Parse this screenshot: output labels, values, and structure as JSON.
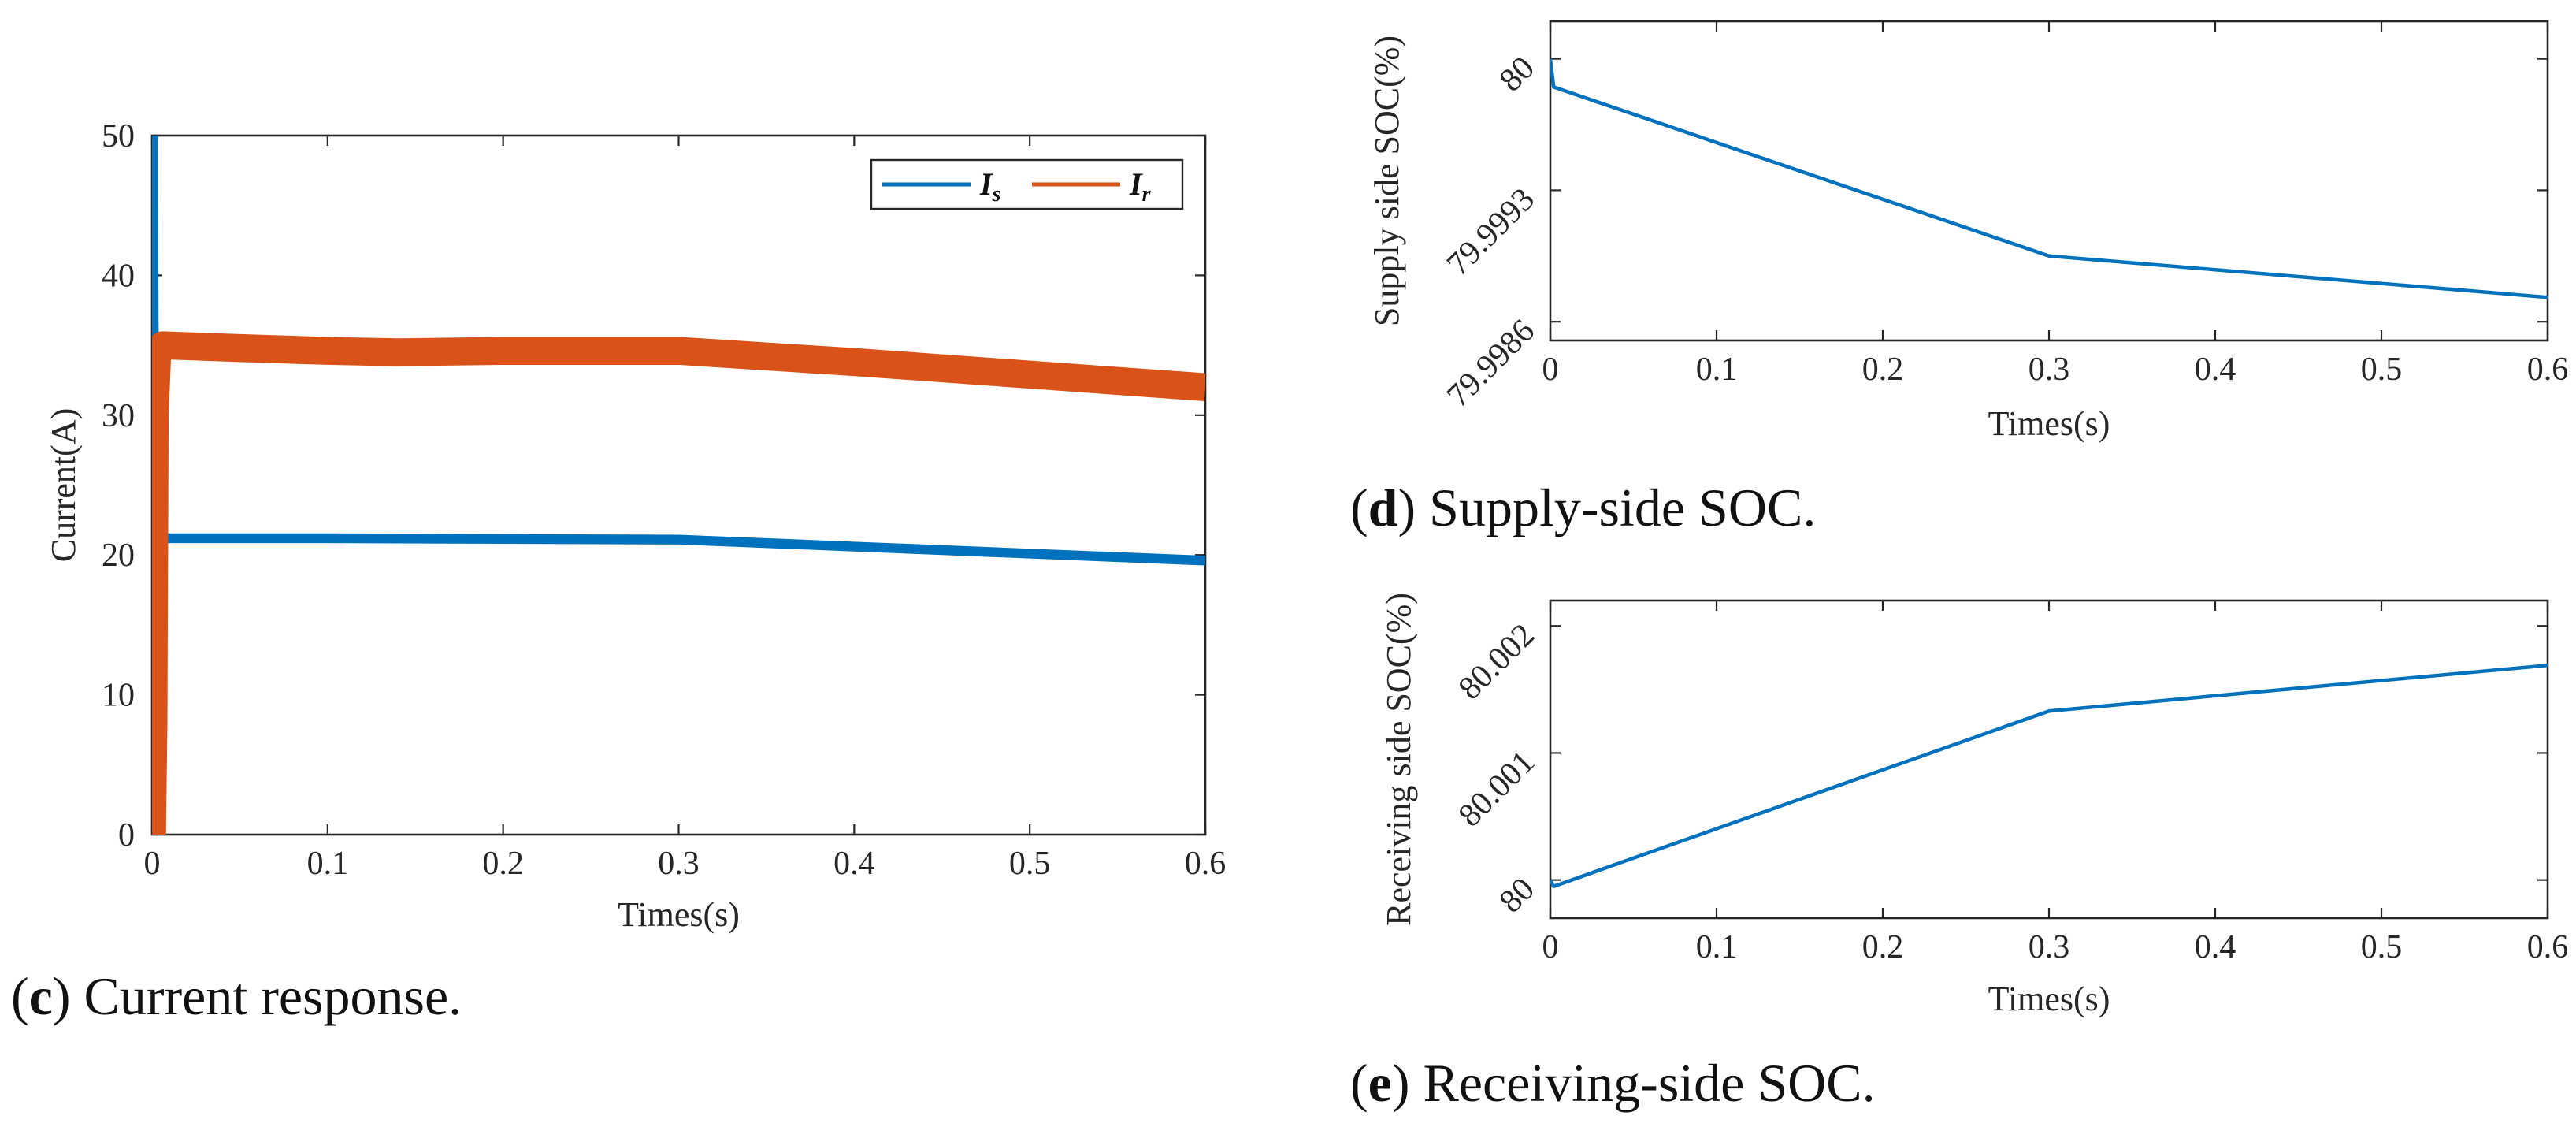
{
  "chart_data": [
    {
      "id": "c",
      "type": "line",
      "caption_letter": "c",
      "caption_text": " Current response.",
      "title": "",
      "xlabel": "Times(s)",
      "ylabel": "Current(A)",
      "xlim": [
        0,
        0.6
      ],
      "ylim": [
        0,
        50
      ],
      "xticks": [
        0,
        0.1,
        0.2,
        0.3,
        0.4,
        0.5,
        0.6
      ],
      "xtick_labels": [
        "0",
        "0.1",
        "0.2",
        "0.3",
        "0.4",
        "0.5",
        "0.6"
      ],
      "yticks": [
        0,
        10,
        20,
        30,
        40,
        50
      ],
      "ytick_labels": [
        "0",
        "10",
        "20",
        "30",
        "40",
        "50"
      ],
      "legend_position": "top-right",
      "series": [
        {
          "name": "Is",
          "legend_main": "I",
          "legend_sub": "s",
          "color": "#0072BD",
          "x": [
            0,
            0.0005,
            0.001,
            0.0015,
            0.002,
            0.003,
            0.004,
            0.006,
            0.1,
            0.2,
            0.3,
            0.4,
            0.5,
            0.6
          ],
          "y": [
            0,
            50,
            35,
            28,
            24,
            22,
            21.3,
            21.2,
            21.2,
            21.15,
            21.1,
            20.6,
            20.1,
            19.6
          ],
          "band": 0.35
        },
        {
          "name": "Ir",
          "legend_main": "I",
          "legend_sub": "r",
          "color": "#D95319",
          "x": [
            0,
            0.0008,
            0.0015,
            0.003,
            0.006,
            0.05,
            0.1,
            0.14,
            0.2,
            0.3,
            0.4,
            0.5,
            0.6
          ],
          "y": [
            0,
            8,
            30,
            34.6,
            35.0,
            34.8,
            34.6,
            34.5,
            34.6,
            34.6,
            33.8,
            32.9,
            32.0
          ],
          "band": 1.0
        }
      ]
    },
    {
      "id": "d",
      "type": "line",
      "caption_letter": "d",
      "caption_text": " Supply-side SOC.",
      "title": "",
      "xlabel": "Times(s)",
      "ylabel": "Supply side SOC(%)",
      "xlim": [
        0,
        0.6
      ],
      "ylim": [
        79.9985,
        80.0002
      ],
      "xticks": [
        0,
        0.1,
        0.2,
        0.3,
        0.4,
        0.5,
        0.6
      ],
      "xtick_labels": [
        "0",
        "0.1",
        "0.2",
        "0.3",
        "0.4",
        "0.5",
        "0.6"
      ],
      "yticks": [
        79.9986,
        79.9993,
        80.0
      ],
      "ytick_labels": [
        "79.9986",
        "79.9993",
        "80"
      ],
      "series": [
        {
          "name": "Supply side SOC",
          "color": "#0072BD",
          "x": [
            0,
            0.002,
            0.3,
            0.6
          ],
          "y": [
            80.0,
            79.99985,
            79.99895,
            79.99873
          ]
        }
      ]
    },
    {
      "id": "e",
      "type": "line",
      "caption_letter": "e",
      "caption_text": " Receiving-side SOC.",
      "title": "",
      "xlabel": "Times(s)",
      "ylabel": "Receiving side SOC(%)",
      "xlim": [
        0,
        0.6
      ],
      "ylim": [
        79.9997,
        80.0022
      ],
      "xticks": [
        0,
        0.1,
        0.2,
        0.3,
        0.4,
        0.5,
        0.6
      ],
      "xtick_labels": [
        "0",
        "0.1",
        "0.2",
        "0.3",
        "0.4",
        "0.5",
        "0.6"
      ],
      "yticks": [
        80.0,
        80.001,
        80.002
      ],
      "ytick_labels": [
        "80",
        "80.001",
        "80.002"
      ],
      "series": [
        {
          "name": "Receiving side SOC",
          "color": "#0072BD",
          "x": [
            0,
            0.002,
            0.3,
            0.6
          ],
          "y": [
            80.0,
            79.99995,
            80.00133,
            80.00169
          ]
        }
      ]
    }
  ]
}
